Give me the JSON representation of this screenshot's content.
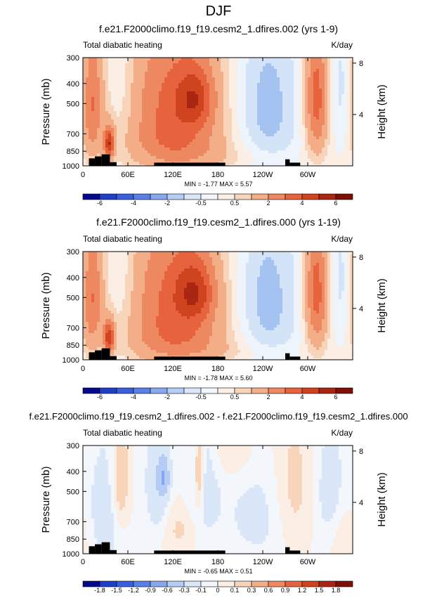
{
  "figure_title": "DJF",
  "colors": {
    "fill_levels_main": [
      "#08306b",
      "#1948b8",
      "#2d5fd6",
      "#4b7ae0",
      "#789fe8",
      "#a5c3f1",
      "#d3e4f8",
      "#eef4fb",
      "#fbeee4",
      "#f8d4bb",
      "#f3ad87",
      "#ee8860",
      "#e6633d",
      "#d0431f",
      "#a92712",
      "#7e0f07"
    ],
    "colorbar_main": [
      "#050a8c",
      "#1f3fc8",
      "#3a5fdd",
      "#5a80e6",
      "#87a8ee",
      "#b5cdf4",
      "#dae7f9",
      "#f3f7fc",
      "#fbeee4",
      "#f8d4bb",
      "#f3ad87",
      "#ee8860",
      "#e6633d",
      "#d0431f",
      "#a92712",
      "#7e0f07"
    ],
    "colorbar_diff": [
      "#050a8c",
      "#1f3fc8",
      "#3a5fdd",
      "#5a80e6",
      "#87a8ee",
      "#b5cdf4",
      "#dae7f9",
      "#f3f7fc",
      "#fbeee4",
      "#f8d4bb",
      "#f3ad87",
      "#ee8860",
      "#e6633d",
      "#d0431f",
      "#a92712",
      "#7e0f07"
    ],
    "terrain": "#000000",
    "background": "#ffffff"
  },
  "chart_data": [
    {
      "type": "heatmap",
      "title": "f.e21.F2000climo.f19_f19.cesm2_1.dfires.002 (yrs 1-9)",
      "left_label": "Total diabatic heating",
      "right_label": "K/day",
      "ylabel": "Pressure (mb)",
      "y2label": "Height (km)",
      "x_ticks": [
        "0",
        "60E",
        "120E",
        "180",
        "120W",
        "60W"
      ],
      "x_tick_values": [
        0,
        60,
        120,
        180,
        240,
        300
      ],
      "xlim": [
        0,
        360
      ],
      "y_ticks": [
        "300",
        "400",
        "500",
        "700",
        "850",
        "1000"
      ],
      "y_tick_values": [
        300,
        400,
        500,
        700,
        850,
        1000
      ],
      "ylim": [
        1000,
        300
      ],
      "y2_ticks": [
        "8",
        "4"
      ],
      "y2_tick_values": [
        8,
        4
      ],
      "min_max_text": "MIN = -1.77   MAX = 5.57",
      "min": -1.77,
      "max": 5.57,
      "colorbar_labels": [
        "-6",
        "-4",
        "-2",
        "-0.5",
        "0.5",
        "2",
        "4",
        "6"
      ],
      "levels": [
        -6,
        -5,
        -4,
        -3,
        -2,
        -1,
        -0.5,
        0,
        0.5,
        1,
        2,
        3,
        4,
        5,
        6
      ],
      "features": [
        {
          "lon": 12,
          "p": 500,
          "amp": 3.0,
          "wlon": 10,
          "wp": 260
        },
        {
          "lon": 35,
          "p": 780,
          "amp": 4.5,
          "wlon": 5,
          "wp": 100
        },
        {
          "lon": 120,
          "p": 520,
          "amp": 3.2,
          "wlon": 45,
          "wp": 330
        },
        {
          "lon": 150,
          "p": 470,
          "amp": 2.6,
          "wlon": 18,
          "wp": 110
        },
        {
          "lon": 128,
          "p": 800,
          "amp": 0.9,
          "wlon": 50,
          "wp": 130
        },
        {
          "lon": 312,
          "p": 470,
          "amp": 3.6,
          "wlon": 11,
          "wp": 260
        },
        {
          "lon": 245,
          "p": 530,
          "amp": -1.3,
          "wlon": 30,
          "wp": 330
        },
        {
          "lon": 55,
          "p": 430,
          "amp": -0.6,
          "wlon": 14,
          "wp": 250
        },
        {
          "lon": 345,
          "p": 420,
          "amp": -0.7,
          "wlon": 16,
          "wp": 220
        },
        {
          "lon": 200,
          "p": 920,
          "amp": 0.4,
          "wlon": 60,
          "wp": 80
        }
      ],
      "terrain_blocks": [
        [
          8,
          16,
          920
        ],
        [
          16,
          25,
          900
        ],
        [
          25,
          36,
          880
        ],
        [
          36,
          45,
          960
        ],
        [
          95,
          190,
          965
        ],
        [
          270,
          276,
          930
        ],
        [
          276,
          290,
          965
        ]
      ]
    },
    {
      "type": "heatmap",
      "title": "f.e21.F2000climo.f19_f19.cesm2_1.dfires.000 (yrs 1-19)",
      "left_label": "Total diabatic heating",
      "right_label": "K/day",
      "ylabel": "Pressure (mb)",
      "y2label": "Height (km)",
      "x_ticks": [
        "0",
        "60E",
        "120E",
        "180",
        "120W",
        "60W"
      ],
      "x_tick_values": [
        0,
        60,
        120,
        180,
        240,
        300
      ],
      "xlim": [
        0,
        360
      ],
      "y_ticks": [
        "300",
        "400",
        "500",
        "700",
        "850",
        "1000"
      ],
      "y_tick_values": [
        300,
        400,
        500,
        700,
        850,
        1000
      ],
      "ylim": [
        1000,
        300
      ],
      "y2_ticks": [
        "8",
        "4"
      ],
      "y2_tick_values": [
        8,
        4
      ],
      "min_max_text": "MIN = -1.78   MAX = 5.60",
      "min": -1.78,
      "max": 5.6,
      "colorbar_labels": [
        "-6",
        "-4",
        "-2",
        "-0.5",
        "0.5",
        "2",
        "4",
        "6"
      ],
      "levels": [
        -6,
        -5,
        -4,
        -3,
        -2,
        -1,
        -0.5,
        0,
        0.5,
        1,
        2,
        3,
        4,
        5,
        6
      ],
      "features": [
        {
          "lon": 12,
          "p": 500,
          "amp": 3.0,
          "wlon": 10,
          "wp": 260
        },
        {
          "lon": 35,
          "p": 780,
          "amp": 4.4,
          "wlon": 5,
          "wp": 100
        },
        {
          "lon": 122,
          "p": 520,
          "amp": 3.2,
          "wlon": 45,
          "wp": 330
        },
        {
          "lon": 150,
          "p": 470,
          "amp": 2.7,
          "wlon": 18,
          "wp": 110
        },
        {
          "lon": 128,
          "p": 800,
          "amp": 0.9,
          "wlon": 50,
          "wp": 130
        },
        {
          "lon": 312,
          "p": 470,
          "amp": 3.6,
          "wlon": 11,
          "wp": 260
        },
        {
          "lon": 245,
          "p": 530,
          "amp": -1.3,
          "wlon": 30,
          "wp": 330
        },
        {
          "lon": 55,
          "p": 430,
          "amp": -0.6,
          "wlon": 14,
          "wp": 250
        },
        {
          "lon": 345,
          "p": 420,
          "amp": -0.7,
          "wlon": 16,
          "wp": 220
        },
        {
          "lon": 200,
          "p": 920,
          "amp": 0.4,
          "wlon": 60,
          "wp": 80
        }
      ],
      "terrain_blocks": [
        [
          8,
          16,
          920
        ],
        [
          16,
          25,
          900
        ],
        [
          25,
          36,
          880
        ],
        [
          36,
          45,
          960
        ],
        [
          95,
          190,
          965
        ],
        [
          270,
          276,
          930
        ],
        [
          276,
          290,
          965
        ]
      ]
    },
    {
      "type": "heatmap",
      "title": "f.e21.F2000climo.f19_f19.cesm2_1.dfires.002 - f.e21.F2000climo.f19_f19.cesm2_1.dfires.000",
      "left_label": "Total diabatic heating",
      "right_label": "K/day",
      "ylabel": "Pressure (mb)",
      "y2label": "Height (km)",
      "x_ticks": [
        "0",
        "60E",
        "120E",
        "180",
        "120W",
        "60W"
      ],
      "x_tick_values": [
        0,
        60,
        120,
        180,
        240,
        300
      ],
      "xlim": [
        0,
        360
      ],
      "y_ticks": [
        "300",
        "400",
        "500",
        "700",
        "850",
        "1000"
      ],
      "y_tick_values": [
        300,
        400,
        500,
        700,
        850,
        1000
      ],
      "ylim": [
        1000,
        300
      ],
      "y2_ticks": [
        "8",
        "4"
      ],
      "y2_tick_values": [
        8,
        4
      ],
      "min_max_text": "MIN = -0.65   MAX = 0.51",
      "min": -0.65,
      "max": 0.51,
      "colorbar_labels": [
        "-1.8",
        "-1.5",
        "-1.2",
        "-0.9",
        "-0.6",
        "-0.3",
        "-0.1",
        "0",
        "0.1",
        "0.3",
        "0.6",
        "0.9",
        "1.2",
        "1.5",
        "1.8"
      ],
      "levels": [
        -1.8,
        -1.5,
        -1.2,
        -0.9,
        -0.6,
        -0.3,
        -0.1,
        0,
        0.1,
        0.3,
        0.6,
        0.9,
        1.2,
        1.5,
        1.8
      ],
      "features": [
        {
          "lon": 108,
          "p": 430,
          "amp": -0.5,
          "wlon": 5,
          "wp": 60
        },
        {
          "lon": 100,
          "p": 480,
          "amp": -0.25,
          "wlon": 12,
          "wp": 250
        },
        {
          "lon": 30,
          "p": 650,
          "amp": -0.2,
          "wlon": 18,
          "wp": 300
        },
        {
          "lon": 160,
          "p": 500,
          "amp": -0.22,
          "wlon": 15,
          "wp": 250
        },
        {
          "lon": 240,
          "p": 650,
          "amp": -0.15,
          "wlon": 40,
          "wp": 300
        },
        {
          "lon": 330,
          "p": 500,
          "amp": -0.18,
          "wlon": 15,
          "wp": 250
        },
        {
          "lon": 50,
          "p": 450,
          "amp": 0.28,
          "wlon": 8,
          "wp": 200
        },
        {
          "lon": 155,
          "p": 420,
          "amp": 0.35,
          "wlon": 5,
          "wp": 140
        },
        {
          "lon": 280,
          "p": 520,
          "amp": 0.2,
          "wlon": 20,
          "wp": 300
        },
        {
          "lon": 130,
          "p": 750,
          "amp": 0.14,
          "wlon": 25,
          "wp": 150
        },
        {
          "lon": 350,
          "p": 800,
          "amp": 0.12,
          "wlon": 15,
          "wp": 200
        },
        {
          "lon": 200,
          "p": 330,
          "amp": 0.12,
          "wlon": 25,
          "wp": 80
        }
      ],
      "terrain_blocks": [
        [
          8,
          16,
          920
        ],
        [
          16,
          25,
          900
        ],
        [
          25,
          36,
          880
        ],
        [
          36,
          45,
          960
        ],
        [
          95,
          190,
          965
        ],
        [
          270,
          276,
          930
        ],
        [
          276,
          290,
          965
        ]
      ]
    }
  ]
}
